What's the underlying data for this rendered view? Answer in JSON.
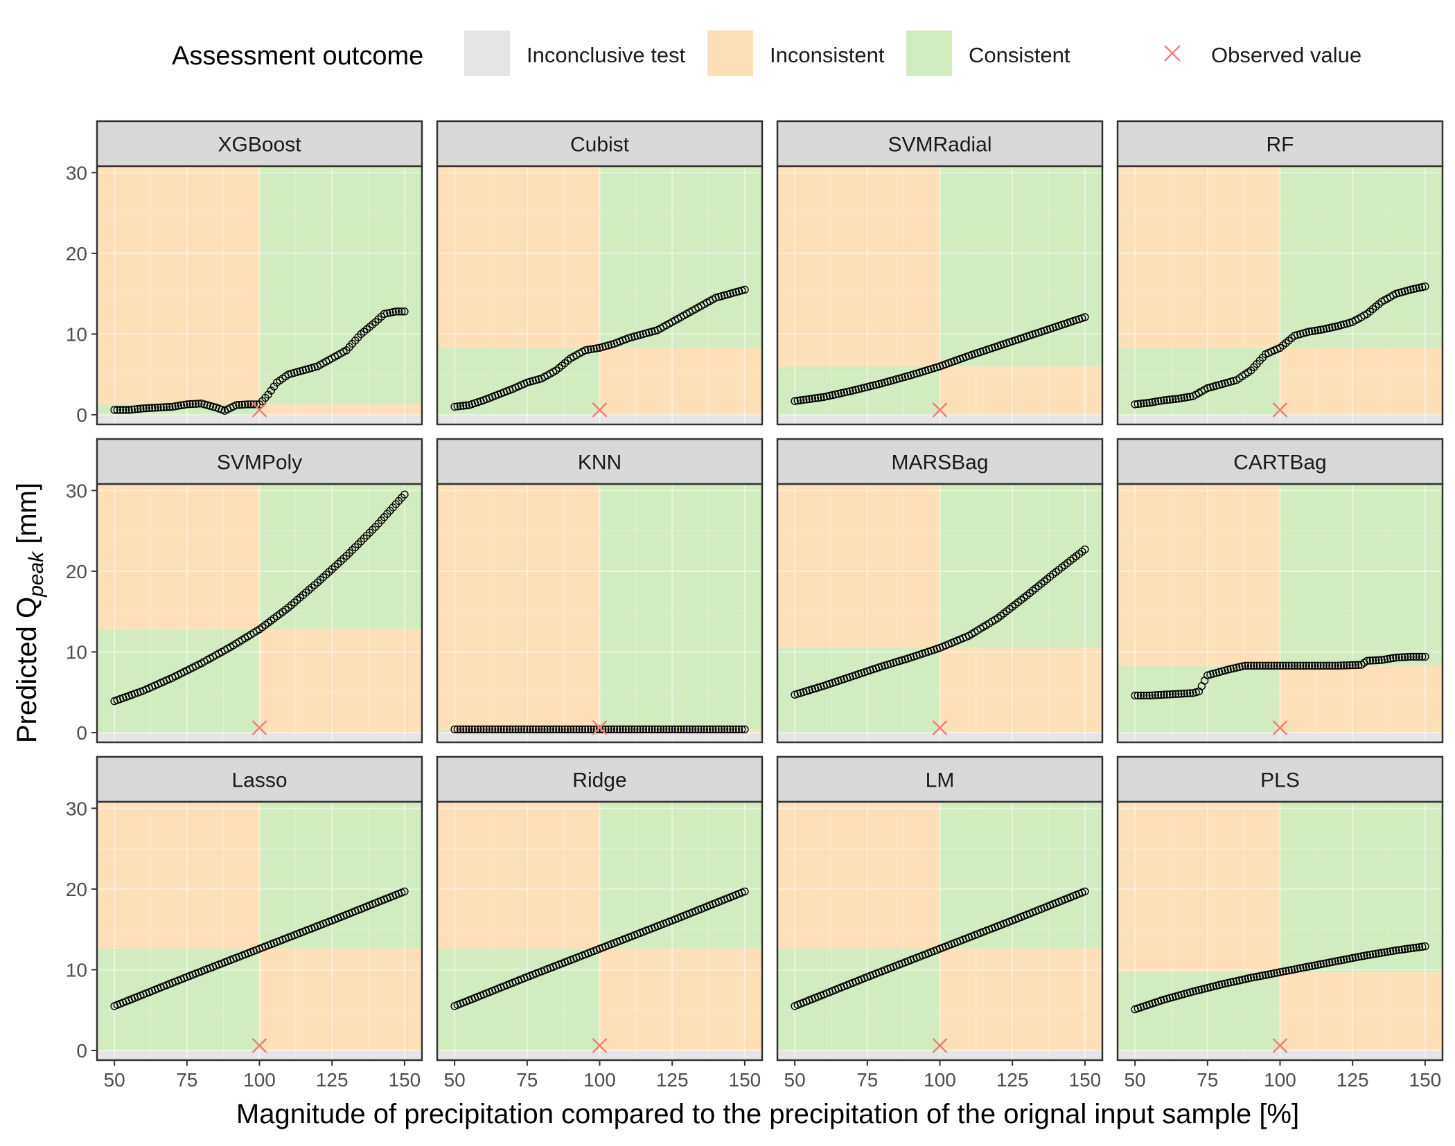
{
  "chart_data": {
    "type": "scatter",
    "legend": {
      "title": "Assessment outcome",
      "placement": "top",
      "entries": [
        {
          "label": "Inconclusive test",
          "color": "#e5e5e5"
        },
        {
          "label": "Inconsistent",
          "color": "#fde0b8"
        },
        {
          "label": "Consistent",
          "color": "#d2ebbf"
        },
        {
          "label": "Observed value",
          "color": "#f07f7a",
          "symbol": "cross"
        }
      ]
    },
    "xlabel": "Magnitude of precipitation compared to the precipitation of the orignal input sample [%]",
    "ylabel_prefix": "Predicted Q",
    "ylabel_sub": "peak",
    "ylabel_suffix": " [mm]",
    "xlim": [
      44,
      156
    ],
    "ylim": [
      -1.2,
      30.8
    ],
    "xticks": [
      50,
      75,
      100,
      125,
      150
    ],
    "yticks": [
      0,
      10,
      20,
      30
    ],
    "grid": true,
    "observed": {
      "x": 100,
      "y": 0.6
    },
    "facet_layout": {
      "rows": 3,
      "cols": 4
    },
    "facets": [
      {
        "name": "XGBoost",
        "threshold": 1.3,
        "points": [
          [
            50,
            0.6
          ],
          [
            55,
            0.6
          ],
          [
            60,
            0.8
          ],
          [
            65,
            0.9
          ],
          [
            70,
            1.0
          ],
          [
            75,
            1.3
          ],
          [
            80,
            1.4
          ],
          [
            85,
            0.9
          ],
          [
            88,
            0.5
          ],
          [
            92,
            1.2
          ],
          [
            96,
            1.3
          ],
          [
            100,
            1.3
          ],
          [
            103,
            2.5
          ],
          [
            106,
            4.0
          ],
          [
            110,
            5.0
          ],
          [
            115,
            5.5
          ],
          [
            120,
            6.0
          ],
          [
            125,
            7.0
          ],
          [
            130,
            8.0
          ],
          [
            135,
            10.0
          ],
          [
            140,
            11.5
          ],
          [
            143,
            12.5
          ],
          [
            147,
            12.8
          ],
          [
            150,
            12.8
          ]
        ]
      },
      {
        "name": "Cubist",
        "threshold": 8.3,
        "points": [
          [
            50,
            1.0
          ],
          [
            55,
            1.2
          ],
          [
            60,
            1.8
          ],
          [
            65,
            2.5
          ],
          [
            70,
            3.2
          ],
          [
            75,
            4.0
          ],
          [
            80,
            4.5
          ],
          [
            85,
            5.5
          ],
          [
            90,
            7.0
          ],
          [
            95,
            8.0
          ],
          [
            100,
            8.3
          ],
          [
            105,
            8.8
          ],
          [
            110,
            9.5
          ],
          [
            115,
            10.0
          ],
          [
            120,
            10.5
          ],
          [
            125,
            11.5
          ],
          [
            130,
            12.5
          ],
          [
            135,
            13.5
          ],
          [
            140,
            14.5
          ],
          [
            145,
            15.0
          ],
          [
            150,
            15.5
          ]
        ]
      },
      {
        "name": "SVMRadial",
        "threshold": 6.0,
        "points": [
          [
            50,
            1.7
          ],
          [
            60,
            2.2
          ],
          [
            70,
            3.0
          ],
          [
            80,
            3.9
          ],
          [
            90,
            4.9
          ],
          [
            100,
            6.0
          ],
          [
            110,
            7.3
          ],
          [
            120,
            8.5
          ],
          [
            130,
            9.7
          ],
          [
            140,
            10.9
          ],
          [
            150,
            12.1
          ]
        ]
      },
      {
        "name": "RF",
        "threshold": 8.3,
        "points": [
          [
            50,
            1.3
          ],
          [
            55,
            1.5
          ],
          [
            60,
            1.8
          ],
          [
            65,
            2.0
          ],
          [
            70,
            2.3
          ],
          [
            75,
            3.3
          ],
          [
            80,
            3.8
          ],
          [
            85,
            4.3
          ],
          [
            90,
            5.5
          ],
          [
            95,
            7.5
          ],
          [
            100,
            8.3
          ],
          [
            105,
            9.8
          ],
          [
            110,
            10.3
          ],
          [
            115,
            10.6
          ],
          [
            120,
            11.0
          ],
          [
            125,
            11.5
          ],
          [
            130,
            12.5
          ],
          [
            135,
            14.0
          ],
          [
            140,
            15.0
          ],
          [
            145,
            15.5
          ],
          [
            150,
            15.9
          ]
        ]
      },
      {
        "name": "SVMPoly",
        "threshold": 12.8,
        "points": [
          [
            50,
            3.9
          ],
          [
            60,
            5.2
          ],
          [
            70,
            6.8
          ],
          [
            80,
            8.6
          ],
          [
            90,
            10.6
          ],
          [
            100,
            12.8
          ],
          [
            110,
            15.5
          ],
          [
            120,
            18.6
          ],
          [
            130,
            21.9
          ],
          [
            140,
            25.5
          ],
          [
            150,
            29.5
          ]
        ]
      },
      {
        "name": "KNN",
        "threshold": 0.4,
        "points": [
          [
            50,
            0.4
          ],
          [
            75,
            0.4
          ],
          [
            100,
            0.4
          ],
          [
            125,
            0.4
          ],
          [
            150,
            0.4
          ]
        ]
      },
      {
        "name": "MARSBag",
        "threshold": 10.5,
        "points": [
          [
            50,
            4.7
          ],
          [
            60,
            5.8
          ],
          [
            70,
            7.0
          ],
          [
            80,
            8.2
          ],
          [
            90,
            9.3
          ],
          [
            100,
            10.5
          ],
          [
            110,
            12.0
          ],
          [
            120,
            14.2
          ],
          [
            130,
            17.0
          ],
          [
            140,
            19.9
          ],
          [
            150,
            22.7
          ]
        ]
      },
      {
        "name": "CARTBag",
        "threshold": 8.3,
        "points": [
          [
            50,
            4.6
          ],
          [
            55,
            4.6
          ],
          [
            60,
            4.7
          ],
          [
            65,
            4.8
          ],
          [
            70,
            4.9
          ],
          [
            72,
            5.1
          ],
          [
            75,
            7.1
          ],
          [
            78,
            7.4
          ],
          [
            82,
            7.8
          ],
          [
            88,
            8.3
          ],
          [
            95,
            8.3
          ],
          [
            100,
            8.3
          ],
          [
            105,
            8.3
          ],
          [
            110,
            8.3
          ],
          [
            120,
            8.3
          ],
          [
            128,
            8.4
          ],
          [
            130,
            8.9
          ],
          [
            135,
            9.0
          ],
          [
            140,
            9.3
          ],
          [
            145,
            9.4
          ],
          [
            150,
            9.4
          ]
        ]
      },
      {
        "name": "Lasso",
        "threshold": 12.6,
        "points": [
          [
            50,
            5.5
          ],
          [
            75,
            9.1
          ],
          [
            100,
            12.6
          ],
          [
            125,
            16.1
          ],
          [
            150,
            19.7
          ]
        ]
      },
      {
        "name": "Ridge",
        "threshold": 12.6,
        "points": [
          [
            50,
            5.5
          ],
          [
            75,
            9.1
          ],
          [
            100,
            12.6
          ],
          [
            125,
            16.1
          ],
          [
            150,
            19.7
          ]
        ]
      },
      {
        "name": "LM",
        "threshold": 12.6,
        "points": [
          [
            50,
            5.5
          ],
          [
            75,
            9.1
          ],
          [
            100,
            12.6
          ],
          [
            125,
            16.1
          ],
          [
            150,
            19.7
          ]
        ]
      },
      {
        "name": "PLS",
        "threshold": 9.7,
        "points": [
          [
            50,
            5.1
          ],
          [
            60,
            6.3
          ],
          [
            70,
            7.3
          ],
          [
            80,
            8.2
          ],
          [
            90,
            9.0
          ],
          [
            100,
            9.7
          ],
          [
            110,
            10.4
          ],
          [
            120,
            11.1
          ],
          [
            130,
            11.8
          ],
          [
            140,
            12.4
          ],
          [
            150,
            12.9
          ]
        ]
      }
    ]
  },
  "colors": {
    "inconclusive": "#e5e5e5",
    "inconsistent": "#fde0b8",
    "consistent": "#d2ebbf",
    "observed": "#f07f7a",
    "strip": "#d9d9d9",
    "point_stroke": "#000000"
  }
}
